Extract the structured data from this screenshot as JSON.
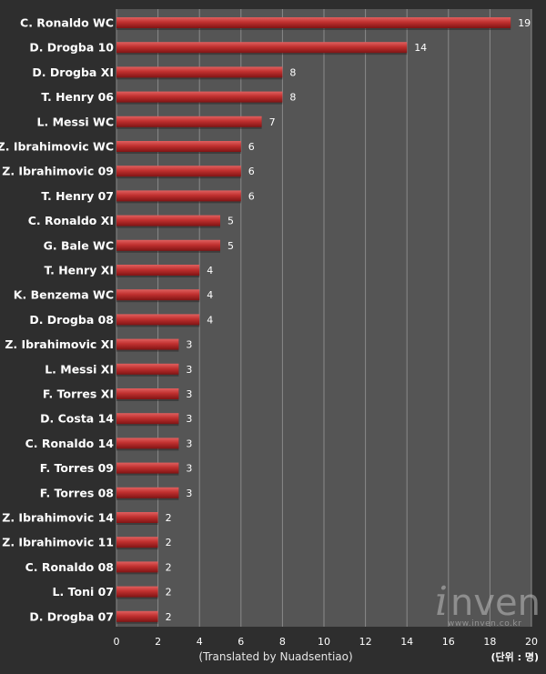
{
  "chart_data": {
    "type": "bar",
    "orientation": "horizontal",
    "categories": [
      "C. Ronaldo WC",
      "D. Drogba 10",
      "D. Drogba XI",
      "T. Henry 06",
      "L. Messi WC",
      "Z. Ibrahimovic WC",
      "Z. Ibrahimovic 09",
      "T. Henry 07",
      "C. Ronaldo XI",
      "G. Bale WC",
      "T. Henry XI",
      "K. Benzema WC",
      "D. Drogba 08",
      "Z. Ibrahimovic XI",
      "L. Messi XI",
      "F. Torres XI",
      "D. Costa 14",
      "C. Ronaldo 14",
      "F. Torres 09",
      "F. Torres 08",
      "Z. Ibrahimovic 14",
      "Z. Ibrahimovic 11",
      "C. Ronaldo 08",
      "L. Toni 07",
      "D. Drogba 07"
    ],
    "values": [
      19,
      14,
      8,
      8,
      7,
      6,
      6,
      6,
      5,
      5,
      4,
      4,
      4,
      3,
      3,
      3,
      3,
      3,
      3,
      3,
      2,
      2,
      2,
      2,
      2
    ],
    "xlim": [
      0,
      20
    ],
    "xticks": [
      0,
      2,
      4,
      6,
      8,
      10,
      12,
      14,
      16,
      18,
      20
    ],
    "xlabel": "(Translated by Nuadsentiao)",
    "unit_label": "(단위 : 명)",
    "grid": true,
    "bar_color": "#b8292c"
  },
  "watermark": {
    "brand": "inven",
    "url": "www.inven.co.kr"
  }
}
